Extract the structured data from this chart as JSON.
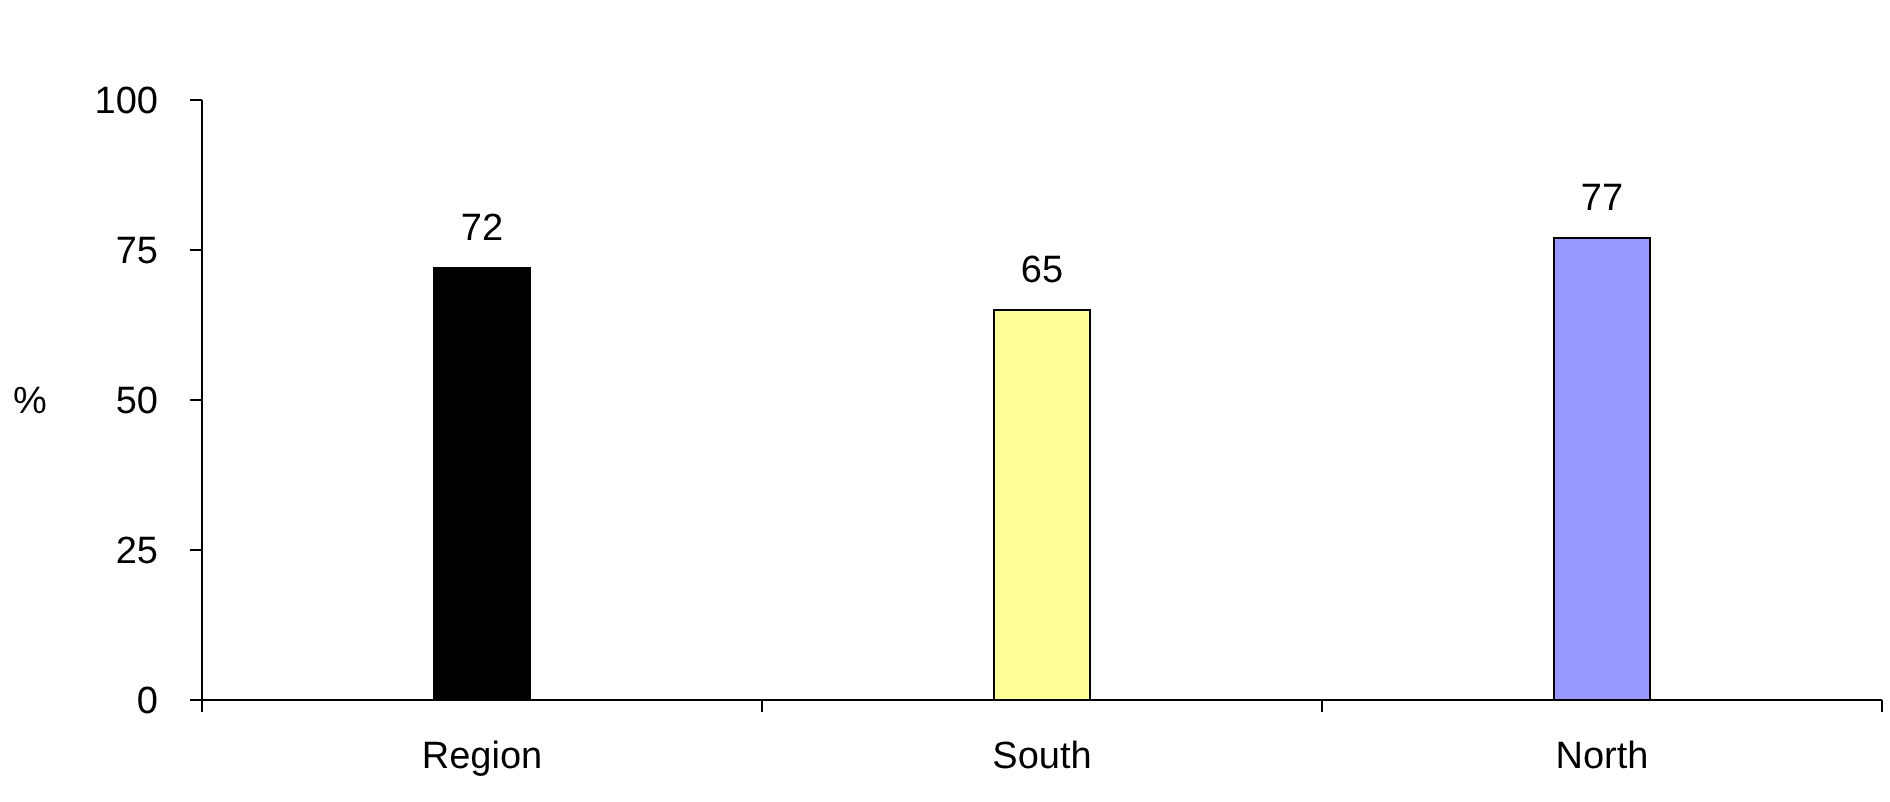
{
  "chart_data": {
    "type": "bar",
    "ylabel": "%",
    "categories": [
      "Region",
      "South",
      "North"
    ],
    "values": [
      72,
      65,
      77
    ],
    "colors": [
      "#000000",
      "#ffff99",
      "#9999ff"
    ],
    "ylim": [
      0,
      100
    ],
    "yticks": [
      0,
      25,
      50,
      75,
      100
    ],
    "data_labels": true,
    "grid": false
  }
}
